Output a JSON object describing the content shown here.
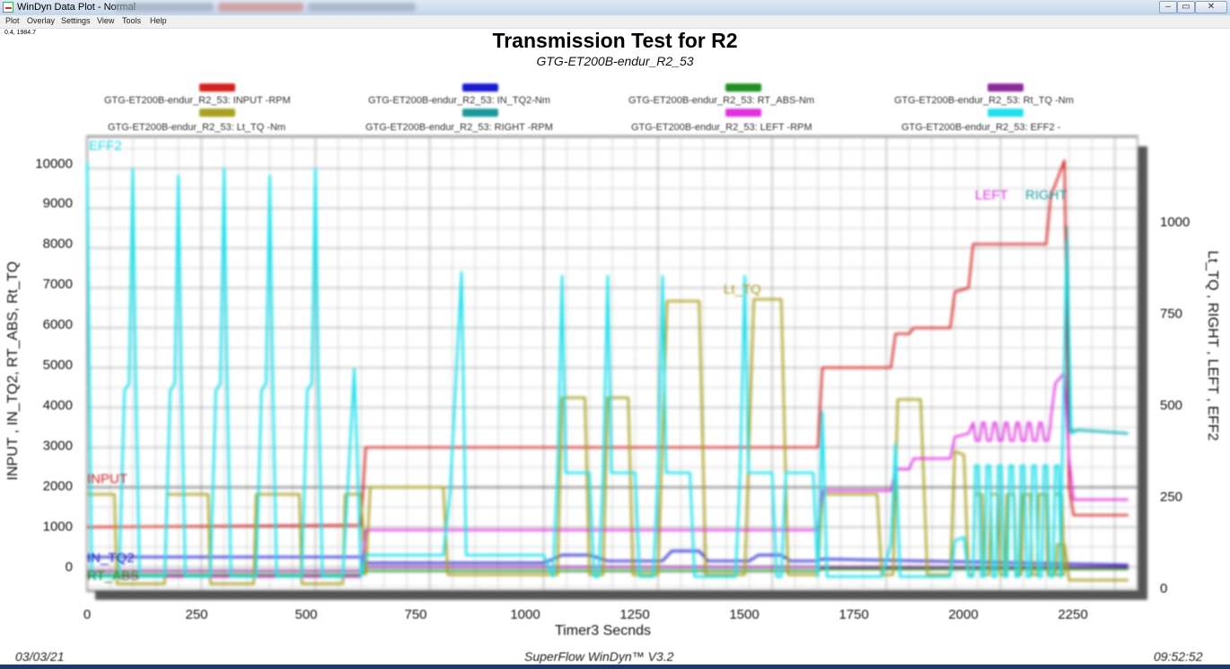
{
  "window": {
    "title": "WinDyn Data Plot - Normal"
  },
  "menu": [
    "Plot",
    "Overlay",
    "Settings",
    "View",
    "Tools",
    "Help"
  ],
  "coords_readout": "0.4, 1984.7",
  "plot": {
    "title": "Transmission Test for R2",
    "subtitle": "GTG-ET200B-endur_R2_53"
  },
  "legend": [
    {
      "label": "GTG-ET200B-endur_R2_53: INPUT -RPM",
      "color": "#d42020"
    },
    {
      "label": "GTG-ET200B-endur_R2_53: IN_TQ2-Nm",
      "color": "#1a1ad0"
    },
    {
      "label": "GTG-ET200B-endur_R2_53: RT_ABS-Nm",
      "color": "#1f8f1f"
    },
    {
      "label": "GTG-ET200B-endur_R2_53: Rt_TQ -Nm",
      "color": "#8a2a9a"
    },
    {
      "label": "GTG-ET200B-endur_R2_53: Lt_TQ -Nm",
      "color": "#a8a020"
    },
    {
      "label": "GTG-ET200B-endur_R2_53: RIGHT -RPM",
      "color": "#1a9a9a"
    },
    {
      "label": "GTG-ET200B-endur_R2_53: LEFT -RPM",
      "color": "#e030e0"
    },
    {
      "label": "GTG-ET200B-endur_R2_53: EFF2 -",
      "color": "#20e0ec"
    }
  ],
  "series_tags": {
    "eff2": "EFF2",
    "input": "INPUT",
    "in_tq2": "IN_TQ2",
    "rt_abs": "RT_ABS",
    "lt_tq": "Lt_TQ",
    "left": "LEFT",
    "right": "RIGHT"
  },
  "footer": {
    "date": "03/03/21",
    "product": "SuperFlow WinDyn™ V3.2",
    "time": "09:52:52"
  },
  "chart_data": {
    "type": "line",
    "xlabel": "Timer3 Secnds",
    "ylabel_left": "INPUT , IN_TQ2, RT_ABS, Rt_TQ",
    "ylabel_right": "Lt_TQ , RIGHT , LEFT , EFF2",
    "xlim": [
      0,
      2300
    ],
    "ylim_left": [
      -600,
      10800
    ],
    "ylim_right": [
      -20,
      1250
    ],
    "x_ticks": [
      "0",
      "250",
      "500",
      "750",
      "1000",
      "1250",
      "1500",
      "1750",
      "2000",
      "2250"
    ],
    "y_left_ticks": [
      "0",
      "1000",
      "2000",
      "3000",
      "4000",
      "5000",
      "6000",
      "7000",
      "8000",
      "9000",
      "10000"
    ],
    "y_right_ticks": [
      "0",
      "250",
      "500",
      "750",
      "1000"
    ],
    "grid": true,
    "series": [
      {
        "name": "INPUT -RPM",
        "axis": "left",
        "color": "#d42020",
        "points": [
          [
            0,
            1000
          ],
          [
            600,
            1050
          ],
          [
            610,
            3000
          ],
          [
            1600,
            3000
          ],
          [
            1610,
            5000
          ],
          [
            1760,
            5000
          ],
          [
            1770,
            5850
          ],
          [
            1800,
            5850
          ],
          [
            1810,
            6000
          ],
          [
            1890,
            6000
          ],
          [
            1900,
            6900
          ],
          [
            1930,
            7000
          ],
          [
            1940,
            8100
          ],
          [
            2100,
            8100
          ],
          [
            2110,
            9300
          ],
          [
            2140,
            10200
          ],
          [
            2150,
            2000
          ],
          [
            2160,
            1300
          ],
          [
            2280,
            1300
          ]
        ]
      },
      {
        "name": "IN_TQ2-Nm",
        "axis": "left",
        "color": "#1a1ad0",
        "points": [
          [
            0,
            250
          ],
          [
            600,
            250
          ],
          [
            610,
            100
          ],
          [
            1000,
            100
          ],
          [
            1040,
            300
          ],
          [
            1100,
            300
          ],
          [
            1140,
            150
          ],
          [
            1260,
            150
          ],
          [
            1280,
            400
          ],
          [
            1340,
            400
          ],
          [
            1360,
            150
          ],
          [
            1450,
            150
          ],
          [
            1470,
            300
          ],
          [
            1520,
            300
          ],
          [
            1540,
            150
          ],
          [
            1600,
            150
          ],
          [
            1610,
            200
          ],
          [
            2280,
            50
          ]
        ]
      },
      {
        "name": "RT_ABS-Nm",
        "axis": "left",
        "color": "#1f8f1f",
        "points": [
          [
            0,
            -200
          ],
          [
            600,
            -200
          ],
          [
            610,
            -100
          ],
          [
            1600,
            -100
          ],
          [
            1610,
            -50
          ],
          [
            2280,
            -50
          ]
        ]
      },
      {
        "name": "Rt_TQ -Nm",
        "axis": "left",
        "color": "#8a2a9a",
        "points": [
          [
            0,
            -100
          ],
          [
            600,
            -100
          ],
          [
            610,
            0
          ],
          [
            2280,
            0
          ]
        ]
      }
    ]
  }
}
